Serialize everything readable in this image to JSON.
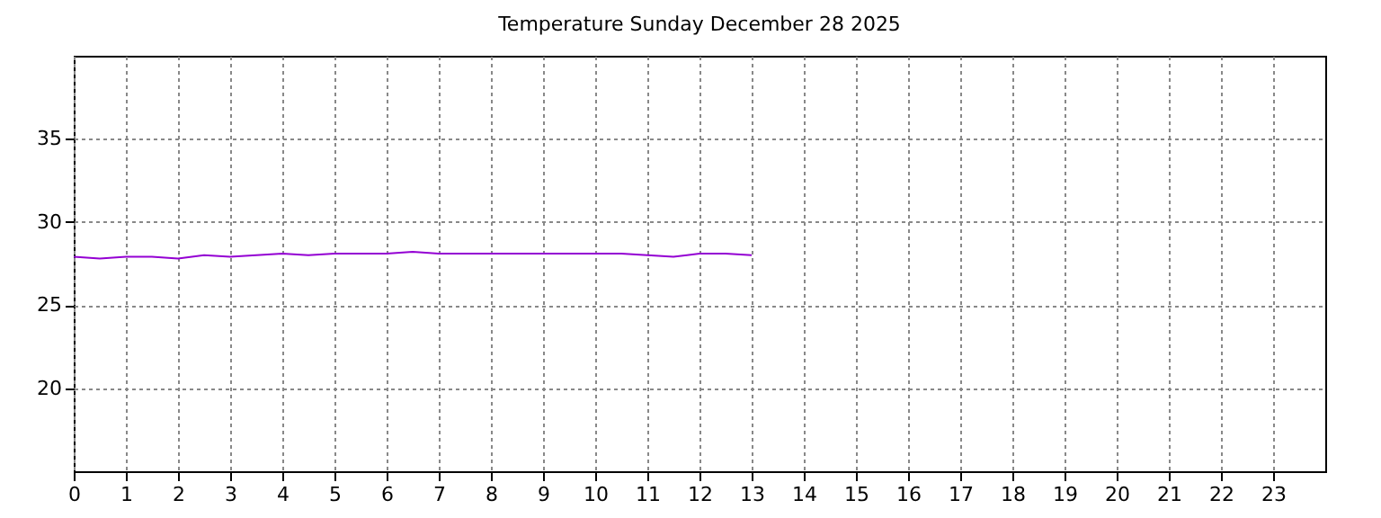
{
  "chart_data": {
    "type": "line",
    "title": "Temperature Sunday December 28 2025",
    "x": [
      0,
      0.5,
      1,
      1.5,
      2,
      2.5,
      3,
      3.5,
      4,
      4.5,
      5,
      5.5,
      6,
      6.5,
      7,
      7.5,
      8,
      8.5,
      9,
      9.5,
      10,
      10.5,
      11,
      11.5,
      12,
      12.5,
      13
    ],
    "series": [
      {
        "color": "#9400d3",
        "values": [
          27.9,
          27.8,
          27.9,
          27.9,
          27.8,
          28.0,
          27.9,
          28.0,
          28.1,
          28.0,
          28.1,
          28.1,
          28.1,
          28.2,
          28.1,
          28.1,
          28.1,
          28.1,
          28.1,
          28.1,
          28.1,
          28.1,
          28.0,
          27.9,
          28.1,
          28.1,
          28.0
        ]
      }
    ],
    "xlim": [
      0,
      24
    ],
    "xticks": [
      0,
      1,
      2,
      3,
      4,
      5,
      6,
      7,
      8,
      9,
      10,
      11,
      12,
      13,
      14,
      15,
      16,
      17,
      18,
      19,
      20,
      21,
      22,
      23
    ],
    "ylim": [
      15,
      40
    ],
    "yticks": [
      20,
      25,
      30,
      35
    ],
    "grid": true,
    "line_style": "solid",
    "marker": "none"
  }
}
